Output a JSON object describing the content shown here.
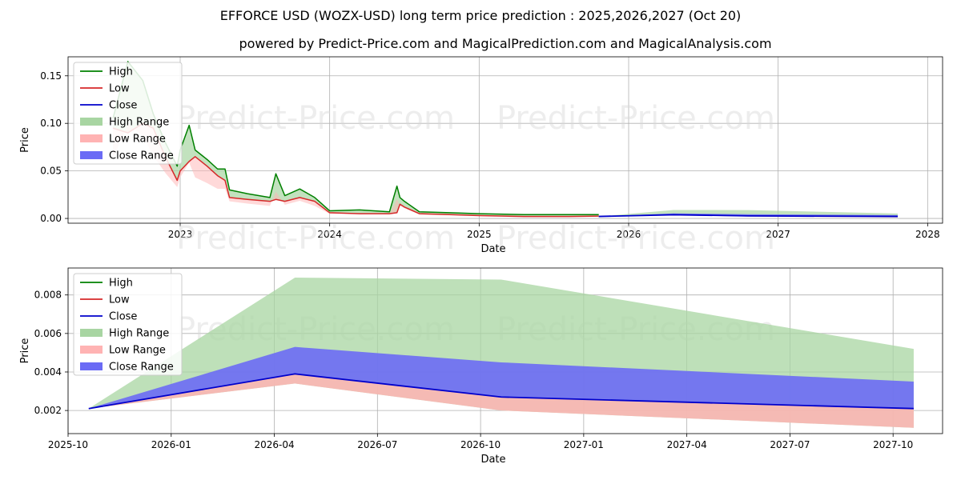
{
  "header": {
    "title": "EFFORCE USD (WOZX-USD) long term price prediction : 2025,2026,2027 (Oct 20)",
    "subtitle": "powered by Predict-Price.com and MagicalPrediction.com and MagicalAnalysis.com"
  },
  "watermark": "Predict-Price.com",
  "colors": {
    "high": "#008000",
    "low": "#d62728",
    "close": "#0000cc",
    "high_range": "#a8d5a2",
    "low_range": "#ffb3b3",
    "close_range": "#6b6bf5"
  },
  "chart_data": [
    {
      "type": "line",
      "title": "",
      "xlabel": "Date",
      "ylabel": "Price",
      "xlim": [
        2022.25,
        2028.1
      ],
      "ylim": [
        -0.005,
        0.17
      ],
      "x_ticks": [
        2023,
        2024,
        2025,
        2026,
        2027,
        2028
      ],
      "x_tick_labels": [
        "2023",
        "2024",
        "2025",
        "2026",
        "2027",
        "2028"
      ],
      "y_ticks": [
        0.0,
        0.05,
        0.1,
        0.15
      ],
      "y_tick_labels": [
        "0.00",
        "0.05",
        "0.10",
        "0.15"
      ],
      "legend": [
        "High",
        "Low",
        "Close",
        "High Range",
        "Low Range",
        "Close Range"
      ],
      "legend_position": "top-left",
      "history": {
        "x": [
          2022.55,
          2022.65,
          2022.75,
          2022.82,
          2022.9,
          2022.98,
          2023.0,
          2023.06,
          2023.1,
          2023.18,
          2023.25,
          2023.3,
          2023.33,
          2023.45,
          2023.6,
          2023.64,
          2023.7,
          2023.8,
          2023.9,
          2024.0,
          2024.2,
          2024.4,
          2024.45,
          2024.47,
          2024.5,
          2024.6,
          2024.8,
          2025.0,
          2025.3,
          2025.6,
          2025.8
        ],
        "high": [
          0.105,
          0.165,
          0.145,
          0.11,
          0.08,
          0.055,
          0.072,
          0.098,
          0.072,
          0.062,
          0.052,
          0.052,
          0.03,
          0.026,
          0.022,
          0.047,
          0.024,
          0.031,
          0.022,
          0.008,
          0.009,
          0.007,
          0.034,
          0.022,
          0.018,
          0.007,
          0.006,
          0.005,
          0.004,
          0.004,
          0.004
        ],
        "low": [
          0.095,
          0.09,
          0.1,
          0.095,
          0.065,
          0.04,
          0.05,
          0.06,
          0.065,
          0.055,
          0.045,
          0.04,
          0.022,
          0.02,
          0.018,
          0.02,
          0.018,
          0.022,
          0.018,
          0.006,
          0.005,
          0.005,
          0.006,
          0.015,
          0.012,
          0.005,
          0.004,
          0.003,
          0.002,
          0.002,
          0.0025
        ]
      },
      "prediction": {
        "x": [
          2025.8,
          2026.3,
          2026.8,
          2027.8
        ],
        "close": [
          0.0021,
          0.0039,
          0.0027,
          0.0021
        ],
        "high_range": [
          0.0021,
          0.0089,
          0.0088,
          0.0052
        ],
        "low_range": [
          0.0021,
          0.0034,
          0.002,
          0.0011
        ],
        "close_hi": [
          0.0021,
          0.0053,
          0.0045,
          0.0035
        ]
      }
    },
    {
      "type": "area",
      "title": "",
      "xlabel": "Date",
      "ylabel": "Price",
      "xlim": [
        2025.75,
        2027.87
      ],
      "ylim": [
        0.0008,
        0.0094
      ],
      "x_ticks": [
        2025.75,
        2026.0,
        2026.25,
        2026.5,
        2026.75,
        2027.0,
        2027.25,
        2027.5,
        2027.75
      ],
      "x_tick_labels": [
        "2025-10",
        "2026-01",
        "2026-04",
        "2026-07",
        "2026-10",
        "2027-01",
        "2027-04",
        "2027-07",
        "2027-10"
      ],
      "y_ticks": [
        0.002,
        0.004,
        0.006,
        0.008
      ],
      "y_tick_labels": [
        "0.002",
        "0.004",
        "0.006",
        "0.008"
      ],
      "legend": [
        "High",
        "Low",
        "Close",
        "High Range",
        "Low Range",
        "Close Range"
      ],
      "legend_position": "top-left",
      "x": [
        2025.8,
        2026.3,
        2026.8,
        2027.8
      ],
      "close": [
        0.0021,
        0.0039,
        0.0027,
        0.0021
      ],
      "high_range": [
        0.0021,
        0.0089,
        0.0088,
        0.0052
      ],
      "low_range": [
        0.0021,
        0.0034,
        0.002,
        0.0011
      ],
      "close_hi": [
        0.0021,
        0.0053,
        0.0045,
        0.0035
      ]
    }
  ]
}
